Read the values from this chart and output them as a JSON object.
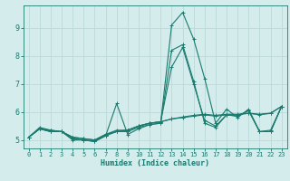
{
  "xlabel": "Humidex (Indice chaleur)",
  "xlim": [
    -0.5,
    23.5
  ],
  "ylim": [
    4.7,
    9.8
  ],
  "xticks": [
    0,
    1,
    2,
    3,
    4,
    5,
    6,
    7,
    8,
    9,
    10,
    11,
    12,
    13,
    14,
    15,
    16,
    17,
    18,
    19,
    20,
    21,
    22,
    23
  ],
  "yticks": [
    5,
    6,
    7,
    8,
    9
  ],
  "bg_color": "#d4ecec",
  "grid_color": "#bcd8d8",
  "line_color": "#1a7a6e",
  "lines": [
    [
      5.1,
      5.4,
      5.3,
      5.3,
      5.0,
      5.0,
      4.95,
      5.15,
      6.3,
      5.2,
      5.4,
      5.55,
      5.6,
      9.1,
      9.55,
      8.6,
      7.2,
      5.6,
      6.1,
      5.8,
      6.1,
      5.3,
      5.3,
      6.2
    ],
    [
      5.1,
      5.4,
      5.35,
      5.3,
      5.1,
      5.05,
      5.0,
      5.2,
      5.3,
      5.35,
      5.5,
      5.6,
      5.65,
      5.75,
      5.8,
      5.85,
      5.9,
      5.85,
      5.9,
      5.9,
      5.95,
      5.9,
      5.95,
      6.2
    ],
    [
      5.1,
      5.45,
      5.35,
      5.3,
      5.1,
      5.05,
      5.0,
      5.2,
      5.3,
      5.35,
      5.5,
      5.6,
      5.65,
      5.75,
      5.82,
      5.88,
      5.92,
      5.88,
      5.92,
      5.92,
      5.96,
      5.92,
      5.96,
      6.2
    ],
    [
      5.1,
      5.4,
      5.3,
      5.3,
      5.05,
      5.0,
      4.95,
      5.15,
      5.3,
      5.3,
      5.45,
      5.55,
      5.6,
      8.2,
      8.4,
      7.1,
      5.6,
      5.45,
      5.9,
      5.85,
      6.05,
      5.3,
      5.3,
      6.2
    ],
    [
      5.1,
      5.4,
      5.3,
      5.3,
      5.05,
      5.0,
      4.95,
      5.2,
      5.35,
      5.35,
      5.5,
      5.6,
      5.65,
      7.6,
      8.3,
      7.0,
      5.7,
      5.5,
      5.9,
      5.85,
      6.05,
      5.3,
      5.35,
      6.2
    ]
  ]
}
